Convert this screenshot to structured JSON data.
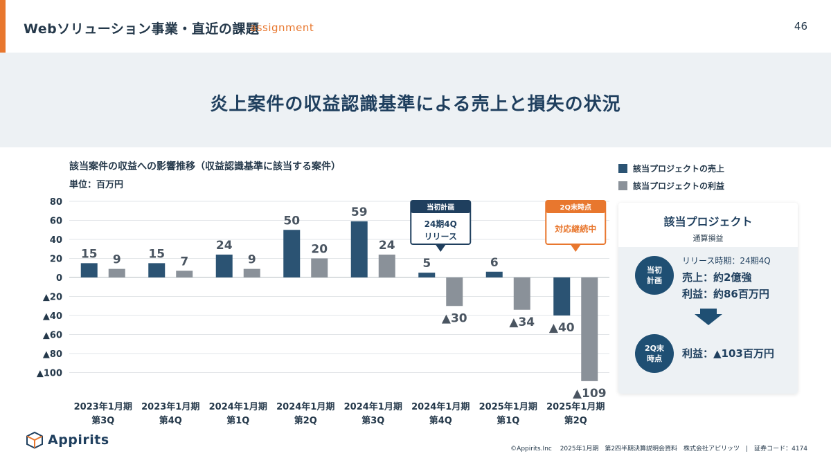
{
  "header": {
    "title": "Webソリューション事業・直近の課題",
    "subtitle": "assignment",
    "page_number": "46"
  },
  "banner": {
    "title": "炎上案件の収益認識基準による売上と損失の状況"
  },
  "chart_data": {
    "type": "bar",
    "title": "該当案件の収益への影響推移（収益認識基準に該当する案件）",
    "unit": "単位：百万円",
    "categories": [
      [
        "2023年1月期",
        "第3Q"
      ],
      [
        "2023年1月期",
        "第4Q"
      ],
      [
        "2024年1月期",
        "第1Q"
      ],
      [
        "2024年1月期",
        "第2Q"
      ],
      [
        "2024年1月期",
        "第3Q"
      ],
      [
        "2024年1月期",
        "第4Q"
      ],
      [
        "2025年1月期",
        "第1Q"
      ],
      [
        "2025年1月期",
        "第2Q"
      ]
    ],
    "series": [
      {
        "name": "該当プロジェクトの売上",
        "color": "#2b5373",
        "values": [
          15,
          15,
          24,
          50,
          59,
          5,
          6,
          -40
        ]
      },
      {
        "name": "該当プロジェクトの利益",
        "color": "#8a9199",
        "values": [
          9,
          7,
          9,
          20,
          24,
          -30,
          -34,
          -109
        ]
      }
    ],
    "data_labels": [
      [
        "15",
        "9"
      ],
      [
        "15",
        "7"
      ],
      [
        "24",
        "9"
      ],
      [
        "50",
        "20"
      ],
      [
        "59",
        "24"
      ],
      [
        "5",
        "▲30"
      ],
      [
        "6",
        "▲34"
      ],
      [
        "▲40",
        "▲109"
      ]
    ],
    "y_ticks": [
      {
        "value": 80,
        "label": "80"
      },
      {
        "value": 60,
        "label": "60"
      },
      {
        "value": 40,
        "label": "40"
      },
      {
        "value": 20,
        "label": "20"
      },
      {
        "value": 0,
        "label": "0"
      },
      {
        "value": -20,
        "label": "▲20"
      },
      {
        "value": -40,
        "label": "▲40"
      },
      {
        "value": -60,
        "label": "▲60"
      },
      {
        "value": -80,
        "label": "▲80"
      },
      {
        "value": -100,
        "label": "▲100"
      }
    ],
    "ylim": [
      -110,
      80
    ],
    "callouts": [
      {
        "category_index": 5,
        "header": "当初計画",
        "body": [
          "24期4Q",
          "リリース"
        ],
        "color": "#1f3f5e"
      },
      {
        "category_index": 7,
        "header": "2Q末時点",
        "body": [
          "対応継続中"
        ],
        "color": "#e8772e"
      }
    ]
  },
  "legend": {
    "items": [
      {
        "label": "該当プロジェクトの売上",
        "color": "#2b5373"
      },
      {
        "label": "該当プロジェクトの利益",
        "color": "#8a9199"
      }
    ]
  },
  "panel": {
    "title": "該当プロジェクト",
    "subtitle": "通算損益",
    "plan": {
      "badge": "当初\n計画",
      "period": "リリース時期：24期4Q",
      "sales": "売上：約2億強",
      "profit": "利益：約86百万円"
    },
    "status": {
      "badge": "2Q末\n時点",
      "profit": "利益：▲103百万円"
    }
  },
  "logo": {
    "text": "Appirits"
  },
  "footer": {
    "text": "©Appirits.Inc　 2025年1月期　第2四半期決算説明会資料　株式会社アピリッツ　|　証券コード：4174"
  }
}
